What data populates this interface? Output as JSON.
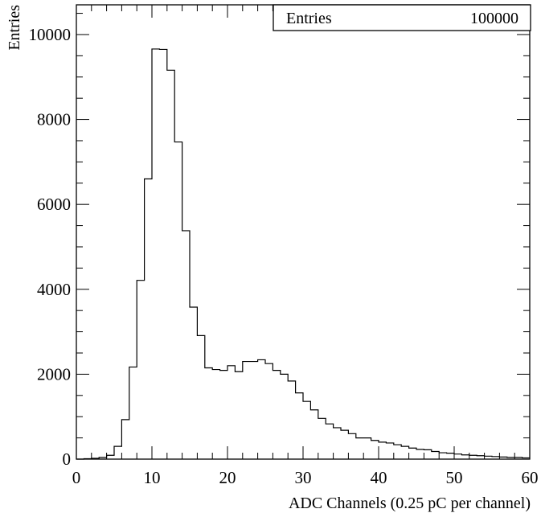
{
  "chart_data": {
    "type": "histogram",
    "xlabel": "ADC Channels (0.25 pC per channel)",
    "ylabel": "Entries",
    "xlim": [
      0,
      60
    ],
    "ylim": [
      0,
      10700
    ],
    "bin_width": 1,
    "x_ticks": [
      "0",
      "10",
      "20",
      "30",
      "40",
      "50",
      "60"
    ],
    "y_ticks": [
      "0",
      "2000",
      "4000",
      "6000",
      "8000",
      "10000"
    ],
    "stats_box": {
      "label": "Entries",
      "value": "100000"
    },
    "bins": [
      {
        "x0": 0,
        "y": 0
      },
      {
        "x0": 1,
        "y": 10
      },
      {
        "x0": 2,
        "y": 20
      },
      {
        "x0": 3,
        "y": 40
      },
      {
        "x0": 4,
        "y": 90
      },
      {
        "x0": 5,
        "y": 300
      },
      {
        "x0": 6,
        "y": 930
      },
      {
        "x0": 7,
        "y": 2170
      },
      {
        "x0": 8,
        "y": 4210
      },
      {
        "x0": 9,
        "y": 6600
      },
      {
        "x0": 10,
        "y": 9660
      },
      {
        "x0": 11,
        "y": 9650
      },
      {
        "x0": 12,
        "y": 9160
      },
      {
        "x0": 13,
        "y": 7470
      },
      {
        "x0": 14,
        "y": 5380
      },
      {
        "x0": 15,
        "y": 3580
      },
      {
        "x0": 16,
        "y": 2910
      },
      {
        "x0": 17,
        "y": 2150
      },
      {
        "x0": 18,
        "y": 2110
      },
      {
        "x0": 19,
        "y": 2090
      },
      {
        "x0": 20,
        "y": 2200
      },
      {
        "x0": 21,
        "y": 2060
      },
      {
        "x0": 22,
        "y": 2300
      },
      {
        "x0": 23,
        "y": 2300
      },
      {
        "x0": 24,
        "y": 2340
      },
      {
        "x0": 25,
        "y": 2250
      },
      {
        "x0": 26,
        "y": 2090
      },
      {
        "x0": 27,
        "y": 2000
      },
      {
        "x0": 28,
        "y": 1840
      },
      {
        "x0": 29,
        "y": 1560
      },
      {
        "x0": 30,
        "y": 1360
      },
      {
        "x0": 31,
        "y": 1160
      },
      {
        "x0": 32,
        "y": 960
      },
      {
        "x0": 33,
        "y": 830
      },
      {
        "x0": 34,
        "y": 740
      },
      {
        "x0": 35,
        "y": 680
      },
      {
        "x0": 36,
        "y": 600
      },
      {
        "x0": 37,
        "y": 500
      },
      {
        "x0": 38,
        "y": 500
      },
      {
        "x0": 39,
        "y": 440
      },
      {
        "x0": 40,
        "y": 400
      },
      {
        "x0": 41,
        "y": 380
      },
      {
        "x0": 42,
        "y": 340
      },
      {
        "x0": 43,
        "y": 300
      },
      {
        "x0": 44,
        "y": 260
      },
      {
        "x0": 45,
        "y": 230
      },
      {
        "x0": 46,
        "y": 220
      },
      {
        "x0": 47,
        "y": 180
      },
      {
        "x0": 48,
        "y": 150
      },
      {
        "x0": 49,
        "y": 140
      },
      {
        "x0": 50,
        "y": 120
      },
      {
        "x0": 51,
        "y": 100
      },
      {
        "x0": 52,
        "y": 90
      },
      {
        "x0": 53,
        "y": 80
      },
      {
        "x0": 54,
        "y": 70
      },
      {
        "x0": 55,
        "y": 60
      },
      {
        "x0": 56,
        "y": 50
      },
      {
        "x0": 57,
        "y": 40
      },
      {
        "x0": 58,
        "y": 40
      },
      {
        "x0": 59,
        "y": 30
      }
    ]
  }
}
